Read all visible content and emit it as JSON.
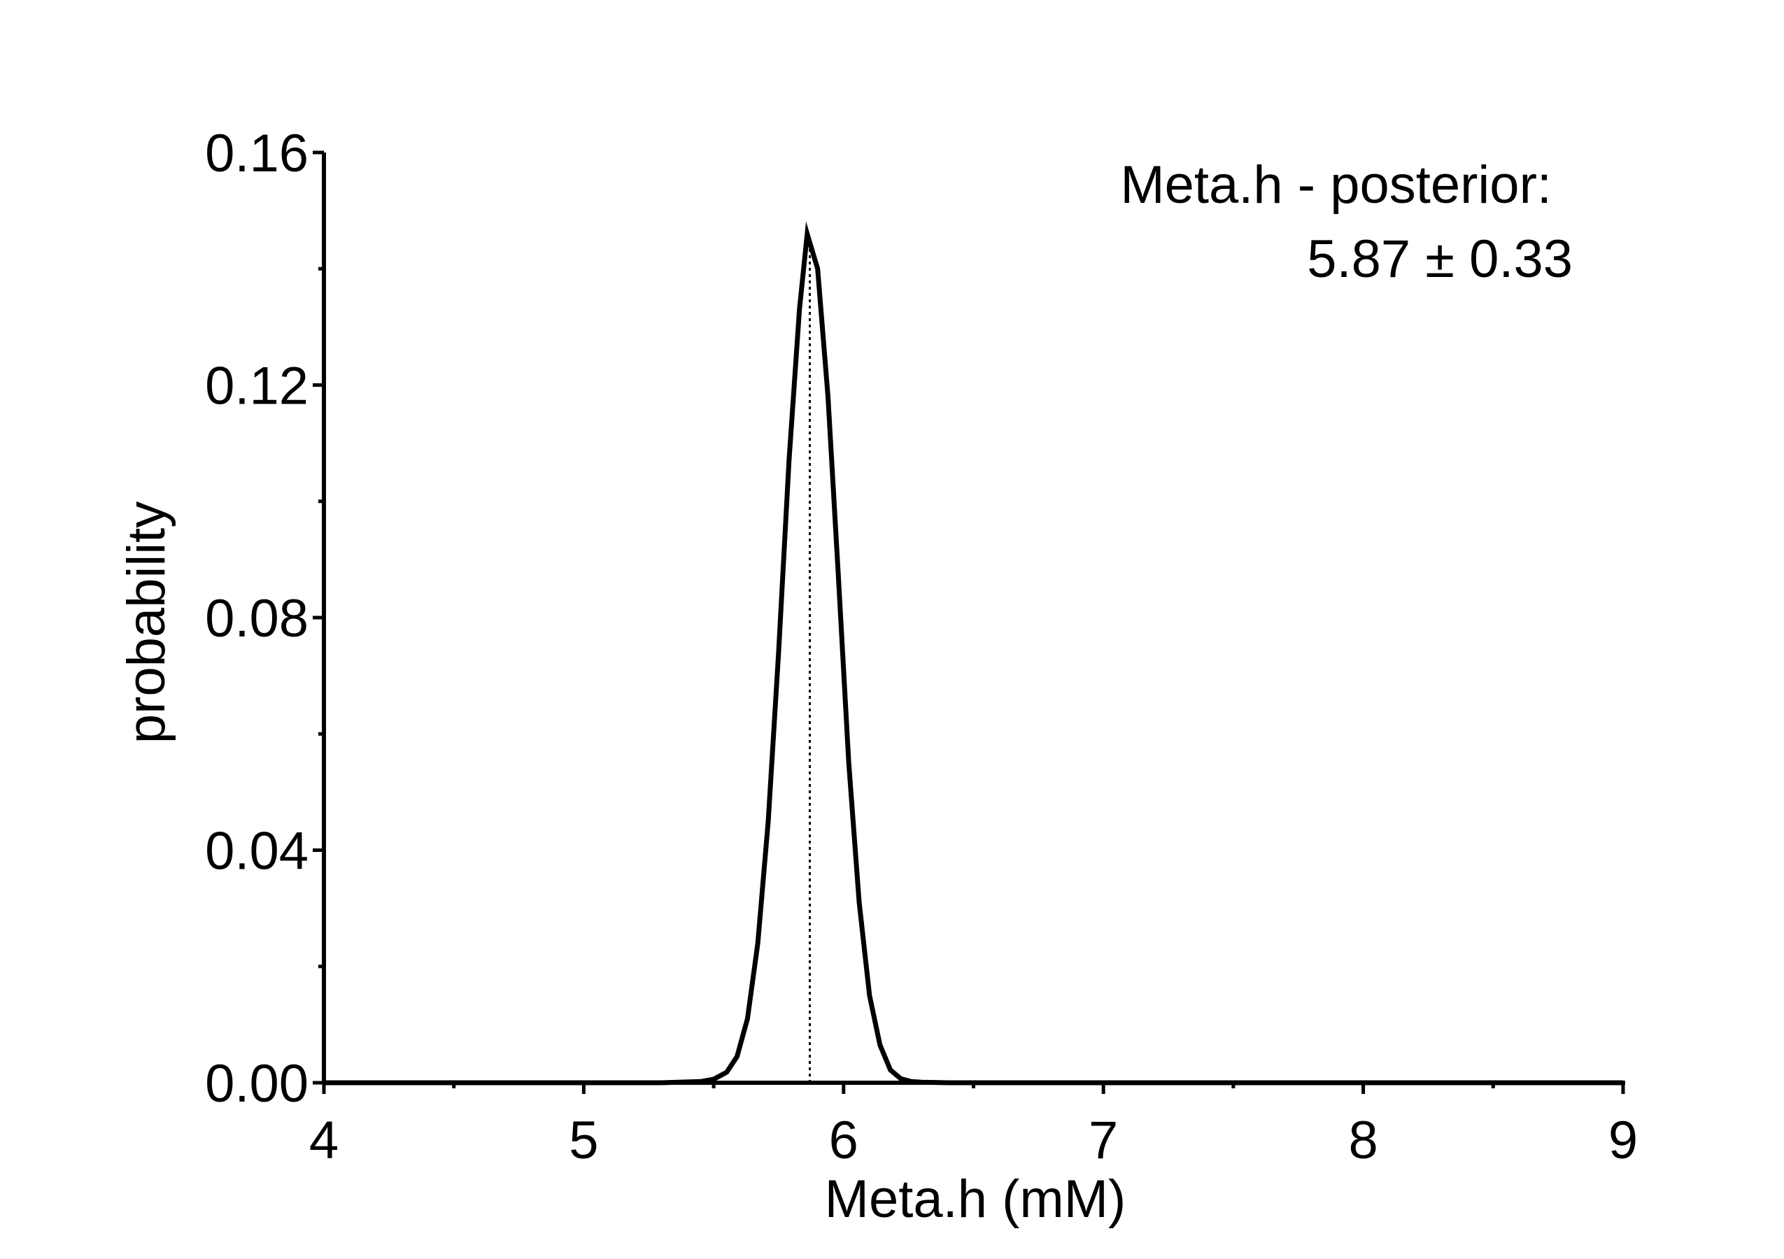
{
  "chart_data": {
    "type": "line",
    "xlabel": "Meta.h (mM)",
    "ylabel": "probability",
    "xlim": [
      4,
      9
    ],
    "ylim": [
      0,
      0.16
    ],
    "x_ticks": [
      "4",
      "5",
      "6",
      "7",
      "8",
      "9"
    ],
    "y_ticks": [
      "0.00",
      "0.04",
      "0.08",
      "0.12",
      "0.16"
    ],
    "grid": false,
    "legend": "none",
    "annotation": {
      "line1": "Meta.h - posterior:",
      "line2": "5.87 ± 0.33"
    },
    "mean_line_x": 5.87,
    "series": [
      {
        "x": [
          4.0,
          4.5,
          5.0,
          5.3,
          5.45,
          5.5,
          5.55,
          5.59,
          5.63,
          5.67,
          5.71,
          5.75,
          5.79,
          5.83,
          5.86,
          5.9,
          5.94,
          5.98,
          6.02,
          6.06,
          6.1,
          6.14,
          6.18,
          6.22,
          6.26,
          6.3,
          6.4,
          6.6,
          7.0,
          8.0,
          9.0
        ],
        "y": [
          0.0,
          0.0,
          0.0,
          0.0,
          0.0002,
          0.0006,
          0.0018,
          0.0045,
          0.011,
          0.024,
          0.045,
          0.074,
          0.107,
          0.133,
          0.146,
          0.14,
          0.118,
          0.087,
          0.055,
          0.031,
          0.015,
          0.0065,
          0.0022,
          0.0007,
          0.0002,
          0.0001,
          0.0,
          0.0,
          0.0,
          0.0,
          0.0
        ],
        "color": "#000000"
      }
    ]
  }
}
